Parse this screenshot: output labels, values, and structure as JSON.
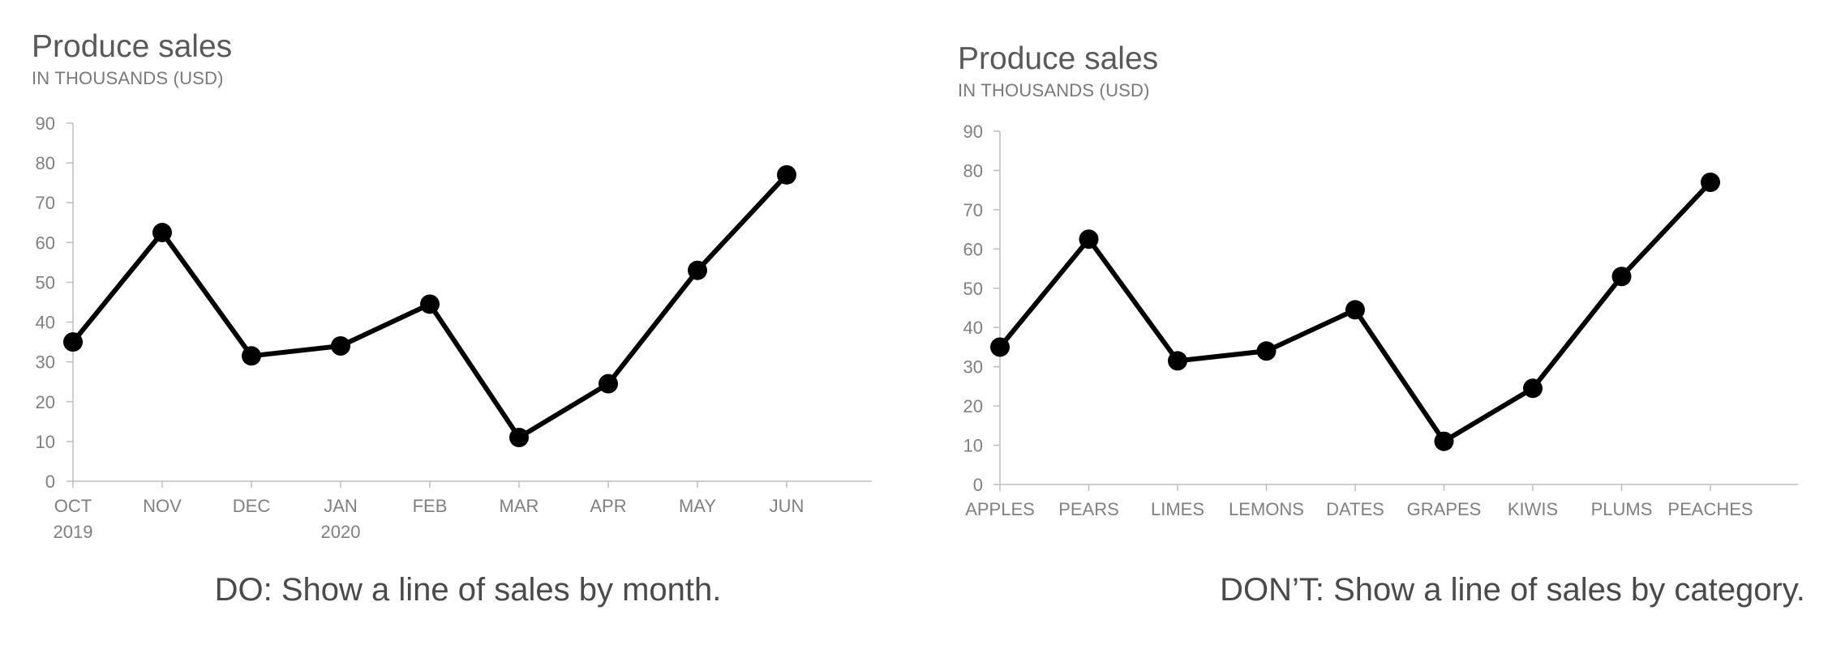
{
  "chart_data": [
    {
      "type": "line",
      "title": "Produce sales",
      "subtitle": "IN THOUSANDS (USD)",
      "caption": "DO: Show a line of sales by month.",
      "categories": [
        "OCT",
        "NOV",
        "DEC",
        "JAN",
        "FEB",
        "MAR",
        "APR",
        "MAY",
        "JUN"
      ],
      "category_sublabels": [
        "2019",
        "",
        "",
        "2020",
        "",
        "",
        "",
        "",
        ""
      ],
      "values": [
        35,
        62.5,
        31.5,
        34,
        44.5,
        11,
        24.5,
        53,
        77
      ],
      "ylim": [
        0,
        90
      ],
      "yticks": [
        0,
        10,
        20,
        30,
        40,
        50,
        60,
        70,
        80,
        90
      ],
      "grid": false,
      "line_color": "#000000"
    },
    {
      "type": "line",
      "title": "Produce sales",
      "subtitle": "IN THOUSANDS (USD)",
      "caption": "DON’T: Show a line of sales by category.",
      "categories": [
        "APPLES",
        "PEARS",
        "LIMES",
        "LEMONS",
        "DATES",
        "GRAPES",
        "KIWIS",
        "PLUMS",
        "PEACHES"
      ],
      "category_sublabels": [
        "",
        "",
        "",
        "",
        "",
        "",
        "",
        "",
        ""
      ],
      "values": [
        35,
        62.5,
        31.5,
        34,
        44.5,
        11,
        24.5,
        53,
        77
      ],
      "ylim": [
        0,
        90
      ],
      "yticks": [
        0,
        10,
        20,
        30,
        40,
        50,
        60,
        70,
        80,
        90
      ],
      "grid": false,
      "line_color": "#000000"
    }
  ]
}
